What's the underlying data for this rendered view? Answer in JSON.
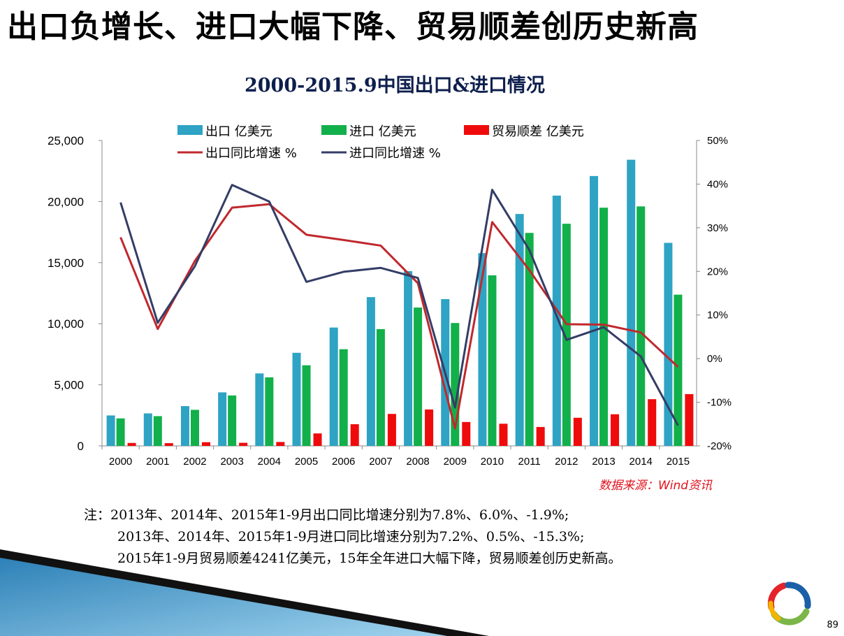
{
  "slide": {
    "title": "出口负增长、进口大幅下降、贸易顺差创历史新高",
    "page_number": "89"
  },
  "source": "数据来源：Wind资讯",
  "notes": [
    "注：2013年、2014年、2015年1-9月出口同比增速分别为7.8%、6.0%、-1.9%;",
    "2013年、2014年、2015年1-9月进口同比增速分别为7.2%、0.5%、-15.3%;",
    "2015年1-9月贸易顺差4241亿美元，15年全年进口大幅下降，贸易顺差创历史新高。"
  ],
  "colors": {
    "export_bar": "#2ea3c4",
    "import_bar": "#12b04a",
    "balance_bar": "#ef0b0b",
    "export_line": "#c0282d",
    "import_line": "#343d66",
    "axis": "#888888"
  },
  "chart_data": {
    "type": "bar+line",
    "title": "2000-2015.9中国出口&进口情况",
    "categories": [
      "2000",
      "2001",
      "2002",
      "2003",
      "2004",
      "2005",
      "2006",
      "2007",
      "2008",
      "2009",
      "2010",
      "2011",
      "2012",
      "2013",
      "2014",
      "2015"
    ],
    "ylim_left": [
      0,
      25000
    ],
    "yticks_left": [
      "0",
      "5,000",
      "10,000",
      "15,000",
      "20,000",
      "25,000"
    ],
    "ylim_right": [
      -20,
      50
    ],
    "yticks_right": [
      "-20%",
      "-10%",
      "0%",
      "10%",
      "20%",
      "30%",
      "40%",
      "50%"
    ],
    "legend_position": "top",
    "bar_series": [
      {
        "name": "出口 亿美元",
        "values": [
          2492,
          2661,
          3256,
          4382,
          5933,
          7620,
          9689,
          12178,
          14307,
          12016,
          15778,
          18984,
          20487,
          22090,
          23423,
          16620
        ]
      },
      {
        "name": "进口 亿美元",
        "values": [
          2251,
          2436,
          2952,
          4128,
          5612,
          6600,
          7915,
          9560,
          11326,
          10059,
          13962,
          17435,
          18184,
          19500,
          19603,
          12380
        ]
      },
      {
        "name": "贸易顺差 亿美元",
        "values": [
          241,
          226,
          304,
          255,
          321,
          1020,
          1775,
          2618,
          2981,
          1957,
          1815,
          1549,
          2303,
          2590,
          3825,
          4241
        ]
      }
    ],
    "line_series": [
      {
        "name": "出口同比增速 %",
        "values": [
          27.8,
          6.8,
          22.4,
          34.6,
          35.4,
          28.4,
          27.2,
          25.9,
          17.3,
          -16.0,
          31.3,
          20.3,
          7.9,
          7.8,
          6.0,
          -1.9
        ]
      },
      {
        "name": "进口同比增速 %",
        "values": [
          35.8,
          8.2,
          21.2,
          39.8,
          36.0,
          17.6,
          19.9,
          20.8,
          18.5,
          -11.2,
          38.7,
          24.9,
          4.3,
          7.2,
          0.5,
          -15.3
        ]
      }
    ]
  }
}
